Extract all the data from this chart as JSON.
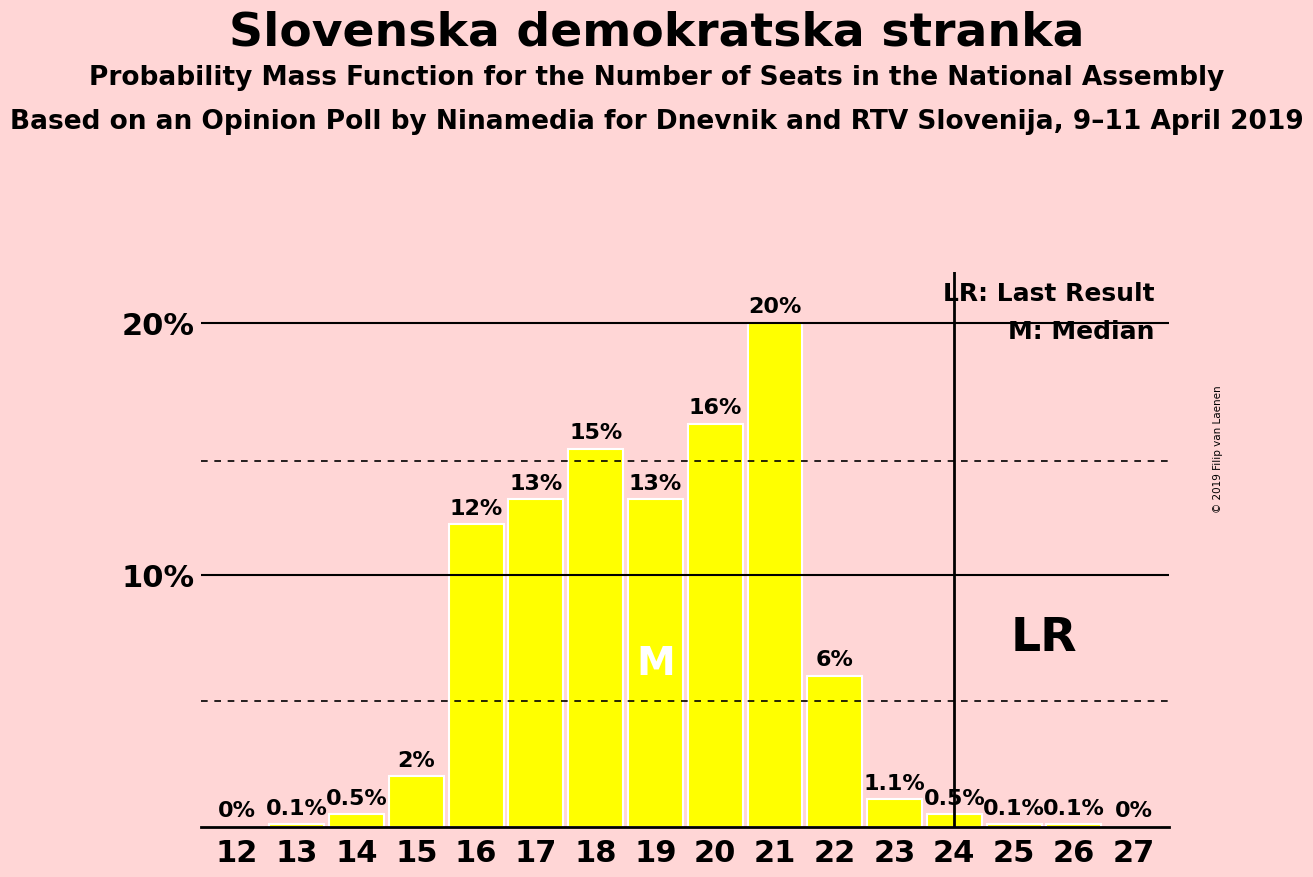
{
  "title": "Slovenska demokratska stranka",
  "subtitle1": "Probability Mass Function for the Number of Seats in the National Assembly",
  "subtitle2": "Based on an Opinion Poll by Ninamedia for Dnevnik and RTV Slovenija, 9–11 April 2019",
  "copyright": "© 2019 Filip van Laenen",
  "seats": [
    12,
    13,
    14,
    15,
    16,
    17,
    18,
    19,
    20,
    21,
    22,
    23,
    24,
    25,
    26,
    27
  ],
  "values": [
    0.0,
    0.1,
    0.5,
    2.0,
    12.0,
    13.0,
    15.0,
    13.0,
    16.0,
    20.0,
    6.0,
    1.1,
    0.5,
    0.1,
    0.1,
    0.0
  ],
  "bar_color": "#ffff00",
  "bar_edge_color": "#ffffff",
  "background_color": "#ffd6d6",
  "text_color": "#000000",
  "median_seat": 19,
  "last_result_seat": 24,
  "ylim": [
    0,
    22
  ],
  "hline_solid": [
    10,
    20
  ],
  "hline_dotted": [
    5.0,
    14.5
  ],
  "label_fontsize": 16,
  "title_fontsize": 34,
  "subtitle1_fontsize": 19,
  "subtitle2_fontsize": 19,
  "tick_fontsize": 22,
  "legend_fontsize": 18,
  "lr_label_fontsize": 34,
  "m_label_fontsize": 28,
  "bar_label_fontsize": 16
}
